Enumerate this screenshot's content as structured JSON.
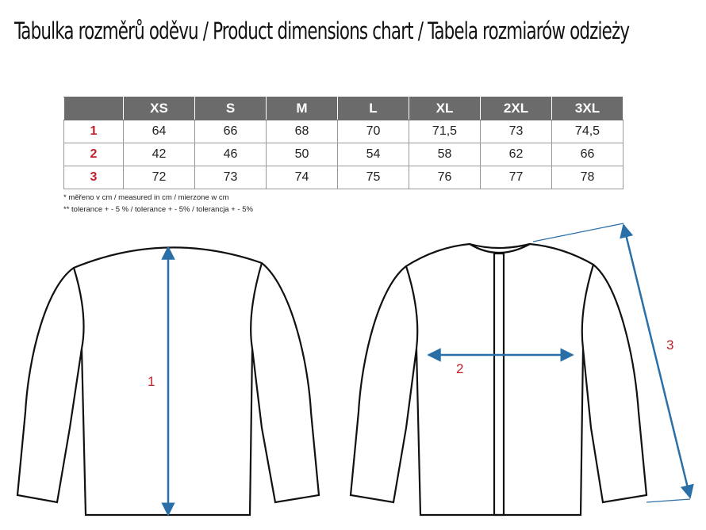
{
  "title": "Tabulka rozměrů oděvu / Product dimensions chart / Tabela rozmiarów odzieży",
  "table": {
    "header": [
      "XS",
      "S",
      "M",
      "L",
      "XL",
      "2XL",
      "3XL"
    ],
    "rows": [
      {
        "label": "1",
        "cells": [
          "64",
          "66",
          "68",
          "70",
          "71,5",
          "73",
          "74,5"
        ]
      },
      {
        "label": "2",
        "cells": [
          "42",
          "46",
          "50",
          "54",
          "58",
          "62",
          "66"
        ]
      },
      {
        "label": "3",
        "cells": [
          "72",
          "73",
          "74",
          "75",
          "76",
          "77",
          "78"
        ]
      }
    ]
  },
  "notes": [
    "* měřeno v cm / measured in cm / mierzone w cm",
    "** tolerance + - 5 % / tolerance + - 5% / tolerancja + - 5%"
  ],
  "diagram": {
    "labels": [
      "1",
      "2",
      "3"
    ]
  }
}
